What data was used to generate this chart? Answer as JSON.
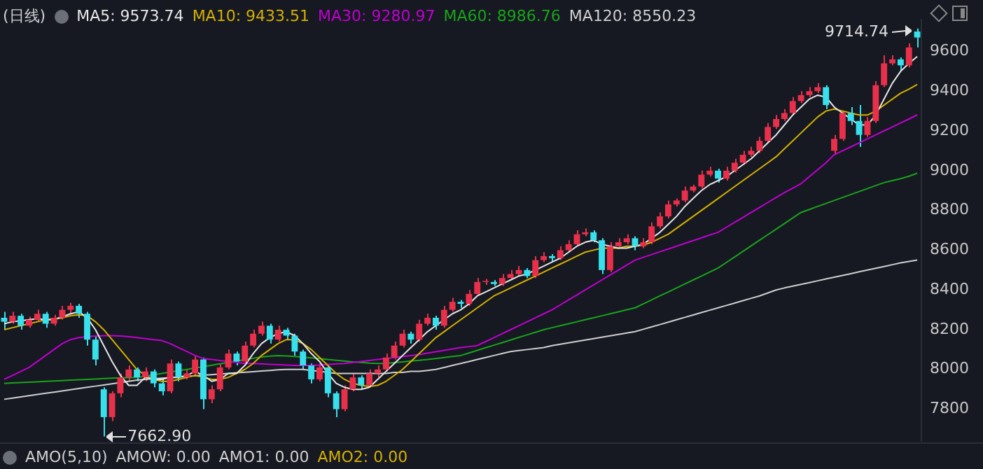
{
  "chart_data": {
    "type": "candlestick",
    "title": "(日线)",
    "tick_labels": "y",
    "marker": "none",
    "line_style": "solid",
    "categories": [
      null,
      null,
      null,
      null,
      null,
      null,
      null,
      null,
      null,
      null,
      null,
      null,
      null,
      null,
      null,
      null,
      null,
      null,
      null,
      null,
      null,
      null,
      null,
      null,
      null,
      null,
      null,
      null,
      null,
      null,
      null,
      null,
      null,
      null,
      null,
      null,
      null,
      null,
      null,
      null,
      null,
      null,
      null,
      null,
      null,
      null,
      null,
      null,
      null,
      null,
      null,
      null,
      null,
      null,
      null,
      null,
      null,
      null,
      null,
      null,
      null,
      null,
      null,
      null,
      null,
      null,
      null,
      null,
      null,
      null,
      null,
      null,
      null,
      null,
      null,
      null,
      null,
      null,
      null,
      null,
      null,
      null,
      null,
      null,
      null,
      null,
      null,
      null,
      null,
      null,
      null,
      null,
      null,
      null,
      null,
      null,
      null,
      null,
      null,
      null,
      null,
      null,
      null,
      null,
      null,
      null,
      null,
      null,
      null,
      null,
      null
    ],
    "ylim": [
      7640,
      9760
    ],
    "yticks": [
      7800,
      8000,
      8200,
      8400,
      8600,
      8800,
      9000,
      9200,
      9400,
      9600
    ],
    "ohlc": [
      [
        8260,
        8290,
        8200,
        8240
      ],
      [
        8240,
        8290,
        8230,
        8270
      ],
      [
        8270,
        8280,
        8200,
        8220
      ],
      [
        8220,
        8265,
        8210,
        8250
      ],
      [
        8250,
        8300,
        8240,
        8280
      ],
      [
        8280,
        8290,
        8210,
        8230
      ],
      [
        8230,
        8275,
        8220,
        8260
      ],
      [
        8260,
        8320,
        8250,
        8300
      ],
      [
        8300,
        8335,
        8280,
        8320
      ],
      [
        8320,
        8330,
        8260,
        8280
      ],
      [
        8280,
        8290,
        8120,
        8150
      ],
      [
        8150,
        8170,
        8020,
        8050
      ],
      [
        7900,
        7910,
        7662.9,
        7760
      ],
      [
        7760,
        7890,
        7740,
        7880
      ],
      [
        7880,
        7980,
        7860,
        7960
      ],
      [
        7960,
        8020,
        7940,
        8000
      ],
      [
        8000,
        8010,
        7940,
        7960
      ],
      [
        7960,
        8010,
        7940,
        7990
      ],
      [
        7990,
        8000,
        7910,
        7930
      ],
      [
        7930,
        7950,
        7870,
        7890
      ],
      [
        7890,
        8050,
        7880,
        8030
      ],
      [
        8030,
        8040,
        7940,
        7960
      ],
      [
        7960,
        8000,
        7950,
        7980
      ],
      [
        7980,
        8070,
        7970,
        8050
      ],
      [
        8050,
        8060,
        7800,
        7850
      ],
      [
        7850,
        7920,
        7830,
        7900
      ],
      [
        7900,
        8030,
        7890,
        8010
      ],
      [
        8010,
        8100,
        8000,
        8080
      ],
      [
        8080,
        8090,
        8020,
        8040
      ],
      [
        8040,
        8140,
        8030,
        8120
      ],
      [
        8120,
        8200,
        8110,
        8180
      ],
      [
        8180,
        8240,
        8170,
        8220
      ],
      [
        8220,
        8230,
        8130,
        8150
      ],
      [
        8150,
        8220,
        8140,
        8200
      ],
      [
        8200,
        8210,
        8150,
        8170
      ],
      [
        8170,
        8180,
        8070,
        8090
      ],
      [
        8090,
        8100,
        8000,
        8020
      ],
      [
        8020,
        8030,
        7930,
        7950
      ],
      [
        7950,
        8030,
        7940,
        8010
      ],
      [
        8010,
        8020,
        7860,
        7880
      ],
      [
        7880,
        7890,
        7760,
        7800
      ],
      [
        7800,
        7920,
        7790,
        7900
      ],
      [
        7900,
        7980,
        7890,
        7960
      ],
      [
        7960,
        7970,
        7900,
        7920
      ],
      [
        7920,
        8000,
        7910,
        7980
      ],
      [
        7980,
        8020,
        7960,
        8000
      ],
      [
        8000,
        8080,
        7990,
        8060
      ],
      [
        8060,
        8140,
        8050,
        8120
      ],
      [
        8120,
        8200,
        8110,
        8180
      ],
      [
        8180,
        8190,
        8130,
        8150
      ],
      [
        8150,
        8250,
        8140,
        8230
      ],
      [
        8230,
        8280,
        8220,
        8260
      ],
      [
        8260,
        8270,
        8200,
        8220
      ],
      [
        8220,
        8320,
        8210,
        8300
      ],
      [
        8300,
        8360,
        8290,
        8340
      ],
      [
        8340,
        8350,
        8310,
        8330
      ],
      [
        8330,
        8400,
        8320,
        8380
      ],
      [
        8380,
        8460,
        8370,
        8440
      ],
      [
        8440,
        8455,
        8425,
        8445
      ],
      [
        8440,
        8450,
        8420,
        8430
      ],
      [
        8430,
        8480,
        8420,
        8460
      ],
      [
        8460,
        8500,
        8450,
        8480
      ],
      [
        8480,
        8520,
        8470,
        8500
      ],
      [
        8500,
        8510,
        8460,
        8470
      ],
      [
        8470,
        8570,
        8460,
        8550
      ],
      [
        8550,
        8590,
        8540,
        8570
      ],
      [
        8570,
        8580,
        8540,
        8560
      ],
      [
        8560,
        8620,
        8550,
        8600
      ],
      [
        8600,
        8650,
        8590,
        8630
      ],
      [
        8630,
        8700,
        8620,
        8680
      ],
      [
        8680,
        8710,
        8670,
        8690
      ],
      [
        8690,
        8700,
        8640,
        8650
      ],
      [
        8650,
        8660,
        8480,
        8500
      ],
      [
        8500,
        8640,
        8490,
        8620
      ],
      [
        8620,
        8660,
        8610,
        8640
      ],
      [
        8640,
        8680,
        8630,
        8660
      ],
      [
        8660,
        8670,
        8600,
        8620
      ],
      [
        8620,
        8660,
        8610,
        8640
      ],
      [
        8640,
        8740,
        8630,
        8720
      ],
      [
        8720,
        8790,
        8710,
        8770
      ],
      [
        8770,
        8850,
        8760,
        8830
      ],
      [
        8830,
        8860,
        8820,
        8850
      ],
      [
        8850,
        8920,
        8840,
        8900
      ],
      [
        8900,
        8930,
        8890,
        8920
      ],
      [
        8920,
        9000,
        8910,
        8980
      ],
      [
        8980,
        9020,
        8970,
        9000
      ],
      [
        9000,
        9010,
        8940,
        8960
      ],
      [
        8960,
        9020,
        8950,
        9000
      ],
      [
        9000,
        9060,
        8990,
        9040
      ],
      [
        9040,
        9100,
        9030,
        9080
      ],
      [
        9080,
        9120,
        9070,
        9100
      ],
      [
        9100,
        9170,
        9090,
        9150
      ],
      [
        9150,
        9240,
        9140,
        9220
      ],
      [
        9220,
        9280,
        9210,
        9260
      ],
      [
        9260,
        9310,
        9250,
        9290
      ],
      [
        9290,
        9370,
        9280,
        9350
      ],
      [
        9350,
        9400,
        9340,
        9380
      ],
      [
        9380,
        9420,
        9370,
        9400
      ],
      [
        9400,
        9440,
        9390,
        9420
      ],
      [
        9420,
        9430,
        9310,
        9330
      ],
      [
        9100,
        9180,
        9080,
        9160
      ],
      [
        9160,
        9300,
        9150,
        9290
      ],
      [
        9290,
        9320,
        9230,
        9250
      ],
      [
        9250,
        9330,
        9120,
        9180
      ],
      [
        9180,
        9270,
        9170,
        9250
      ],
      [
        9250,
        9450,
        9240,
        9430
      ],
      [
        9430,
        9580,
        9420,
        9540
      ],
      [
        9540,
        9580,
        9530,
        9560
      ],
      [
        9560,
        9570,
        9500,
        9530
      ],
      [
        9530,
        9640,
        9520,
        9620
      ],
      [
        9700,
        9714.74,
        9620,
        9670
      ]
    ],
    "colors": [
      "#37e0ec",
      "#e8304a",
      "#37e0ec",
      "#e8304a",
      "#e8304a",
      "#37e0ec",
      "#e8304a",
      "#e8304a",
      "#e8304a",
      "#37e0ec",
      "#37e0ec",
      "#37e0ec",
      "#37e0ec",
      "#e8304a",
      "#e8304a",
      "#e8304a",
      "#37e0ec",
      "#e8304a",
      "#37e0ec",
      "#37e0ec",
      "#e8304a",
      "#37e0ec",
      "#e8304a",
      "#e8304a",
      "#37e0ec",
      "#e8304a",
      "#e8304a",
      "#e8304a",
      "#37e0ec",
      "#e8304a",
      "#e8304a",
      "#e8304a",
      "#37e0ec",
      "#e8304a",
      "#37e0ec",
      "#37e0ec",
      "#37e0ec",
      "#37e0ec",
      "#e8304a",
      "#37e0ec",
      "#37e0ec",
      "#e8304a",
      "#e8304a",
      "#37e0ec",
      "#e8304a",
      "#e8304a",
      "#e8304a",
      "#e8304a",
      "#e8304a",
      "#37e0ec",
      "#e8304a",
      "#e8304a",
      "#37e0ec",
      "#e8304a",
      "#e8304a",
      "#37e0ec",
      "#e8304a",
      "#e8304a",
      "#e8304a",
      "#37e0ec",
      "#e8304a",
      "#e8304a",
      "#e8304a",
      "#37e0ec",
      "#e8304a",
      "#e8304a",
      "#37e0ec",
      "#e8304a",
      "#e8304a",
      "#e8304a",
      "#e8304a",
      "#37e0ec",
      "#37e0ec",
      "#e8304a",
      "#e8304a",
      "#e8304a",
      "#37e0ec",
      "#e8304a",
      "#e8304a",
      "#e8304a",
      "#e8304a",
      "#e8304a",
      "#e8304a",
      "#e8304a",
      "#e8304a",
      "#e8304a",
      "#37e0ec",
      "#e8304a",
      "#e8304a",
      "#e8304a",
      "#e8304a",
      "#e8304a",
      "#e8304a",
      "#e8304a",
      "#e8304a",
      "#e8304a",
      "#e8304a",
      "#e8304a",
      "#e8304a",
      "#37e0ec",
      "#e8304a",
      "#e8304a",
      "#37e0ec",
      "#37e0ec",
      "#e8304a",
      "#e8304a",
      "#e8304a",
      "#e8304a",
      "#37e0ec",
      "#e8304a",
      "#37e0ec"
    ],
    "series": [
      {
        "name": "MA5: 9573.74",
        "type": "line",
        "color": "#e6e6e6",
        "values": [
          8230,
          8240,
          8245,
          8250,
          8255,
          8250,
          8250,
          8265,
          8280,
          8290,
          8260,
          8200,
          8120,
          8040,
          7970,
          7920,
          7920,
          7960,
          7950,
          7950,
          7960,
          7960,
          7970,
          7990,
          7970,
          7940,
          7950,
          7980,
          7980,
          8020,
          8080,
          8130,
          8160,
          8180,
          8190,
          8170,
          8130,
          8080,
          8040,
          7980,
          7930,
          7910,
          7900,
          7900,
          7910,
          7950,
          7990,
          8030,
          8070,
          8110,
          8150,
          8190,
          8220,
          8250,
          8280,
          8300,
          8330,
          8370,
          8390,
          8410,
          8430,
          8450,
          8470,
          8480,
          8500,
          8520,
          8540,
          8560,
          8590,
          8620,
          8640,
          8650,
          8630,
          8620,
          8610,
          8610,
          8620,
          8630,
          8660,
          8690,
          8730,
          8770,
          8820,
          8860,
          8900,
          8930,
          8950,
          8970,
          9000,
          9030,
          9060,
          9100,
          9140,
          9180,
          9230,
          9280,
          9320,
          9360,
          9380,
          9370,
          9320,
          9290,
          9260,
          9230,
          9230,
          9280,
          9360,
          9440,
          9500,
          9540,
          9574
        ]
      },
      {
        "name": "MA10: 9433.51",
        "type": "line",
        "color": "#d4b000",
        "values": [
          8200,
          8210,
          8220,
          8230,
          8240,
          8250,
          8255,
          8260,
          8270,
          8275,
          8270,
          8240,
          8200,
          8150,
          8100,
          8050,
          8000,
          7970,
          7950,
          7940,
          7940,
          7950,
          7960,
          7970,
          7960,
          7950,
          7950,
          7960,
          7980,
          8000,
          8030,
          8070,
          8100,
          8130,
          8150,
          8150,
          8130,
          8100,
          8060,
          8020,
          7980,
          7950,
          7930,
          7920,
          7915,
          7920,
          7940,
          7970,
          8000,
          8040,
          8080,
          8120,
          8160,
          8190,
          8220,
          8250,
          8280,
          8310,
          8340,
          8370,
          8390,
          8410,
          8430,
          8450,
          8470,
          8490,
          8510,
          8530,
          8550,
          8570,
          8590,
          8600,
          8610,
          8610,
          8610,
          8620,
          8620,
          8625,
          8640,
          8660,
          8680,
          8710,
          8740,
          8770,
          8800,
          8830,
          8860,
          8890,
          8920,
          8950,
          8980,
          9010,
          9040,
          9070,
          9110,
          9150,
          9190,
          9230,
          9270,
          9300,
          9310,
          9300,
          9290,
          9280,
          9280,
          9300,
          9330,
          9360,
          9390,
          9410,
          9434
        ]
      },
      {
        "name": "MA30: 9280.97",
        "type": "line",
        "color": "#c000d0",
        "values": [
          7950,
          7970,
          7990,
          8010,
          8040,
          8070,
          8100,
          8130,
          8150,
          8160,
          8165,
          8168,
          8170,
          8170,
          8168,
          8165,
          8160,
          8155,
          8150,
          8145,
          8130,
          8110,
          8090,
          8070,
          8055,
          8050,
          8045,
          8040,
          8035,
          8030,
          8030,
          8028,
          8026,
          8024,
          8022,
          8020,
          8020,
          8020,
          8022,
          8025,
          8028,
          8030,
          8035,
          8040,
          8045,
          8050,
          8055,
          8060,
          8065,
          8070,
          8075,
          8082,
          8089,
          8096,
          8103,
          8110,
          8115,
          8120,
          8140,
          8160,
          8180,
          8200,
          8220,
          8240,
          8260,
          8280,
          8300,
          8325,
          8350,
          8375,
          8400,
          8425,
          8450,
          8475,
          8500,
          8525,
          8550,
          8564,
          8578,
          8592,
          8606,
          8620,
          8634,
          8648,
          8662,
          8676,
          8690,
          8715,
          8740,
          8765,
          8790,
          8815,
          8840,
          8865,
          8890,
          8912,
          8935,
          8970,
          9005,
          9040,
          9080,
          9100,
          9120,
          9140,
          9160,
          9180,
          9200,
          9220,
          9240,
          9260,
          9281
        ]
      },
      {
        "name": "MA60: 8986.76",
        "type": "line",
        "color": "#1aa31a",
        "values": [
          7930,
          7932,
          7934,
          7936,
          7938,
          7940,
          7942,
          7944,
          7946,
          7948,
          7950,
          7952,
          7954,
          7956,
          7958,
          7959,
          7960,
          7966,
          7973,
          7980,
          7987,
          7994,
          8000,
          8007,
          8014,
          8021,
          8028,
          8035,
          8042,
          8049,
          8056,
          8063,
          8067,
          8070,
          8068,
          8065,
          8062,
          8058,
          8055,
          8050,
          8046,
          8042,
          8038,
          8035,
          8032,
          8030,
          8030,
          8034,
          8038,
          8042,
          8046,
          8050,
          8055,
          8060,
          8065,
          8070,
          8083,
          8096,
          8109,
          8122,
          8135,
          8148,
          8161,
          8174,
          8187,
          8200,
          8210,
          8220,
          8230,
          8240,
          8250,
          8260,
          8270,
          8280,
          8290,
          8300,
          8310,
          8330,
          8350,
          8370,
          8390,
          8410,
          8430,
          8450,
          8470,
          8490,
          8510,
          8538,
          8566,
          8594,
          8622,
          8650,
          8678,
          8706,
          8734,
          8762,
          8790,
          8805,
          8820,
          8835,
          8850,
          8865,
          8880,
          8895,
          8910,
          8925,
          8940,
          8950,
          8960,
          8972,
          8987
        ]
      },
      {
        "name": "MA120: 8550.23",
        "type": "line",
        "color": "#cfcfcf",
        "values": [
          7850,
          7856,
          7862,
          7868,
          7874,
          7880,
          7886,
          7892,
          7898,
          7904,
          7910,
          7916,
          7922,
          7928,
          7934,
          7940,
          7946,
          7950,
          7953,
          7956,
          7959,
          7962,
          7965,
          7968,
          7971,
          7974,
          7977,
          7980,
          7983,
          7986,
          7989,
          7992,
          7995,
          7998,
          8000,
          8000,
          8000,
          7995,
          7990,
          7985,
          7980,
          7980,
          7980,
          7980,
          7980,
          7980,
          7980,
          7985,
          7985,
          7990,
          7990,
          7995,
          8000,
          8010,
          8020,
          8030,
          8040,
          8050,
          8060,
          8070,
          8080,
          8090,
          8095,
          8100,
          8105,
          8110,
          8120,
          8127,
          8134,
          8141,
          8148,
          8155,
          8162,
          8169,
          8176,
          8183,
          8190,
          8202,
          8214,
          8226,
          8238,
          8250,
          8262,
          8274,
          8286,
          8298,
          8310,
          8322,
          8334,
          8346,
          8358,
          8370,
          8385,
          8400,
          8410,
          8419,
          8428,
          8437,
          8446,
          8455,
          8464,
          8473,
          8482,
          8491,
          8500,
          8509,
          8518,
          8527,
          8536,
          8543,
          8550
        ]
      }
    ],
    "annotations": [
      "7662.90",
      "9714.74",
      "AMO(5,10)",
      "AMOW: 0.00",
      "AMO1: 0.00",
      "AMO2: 0.00"
    ]
  }
}
